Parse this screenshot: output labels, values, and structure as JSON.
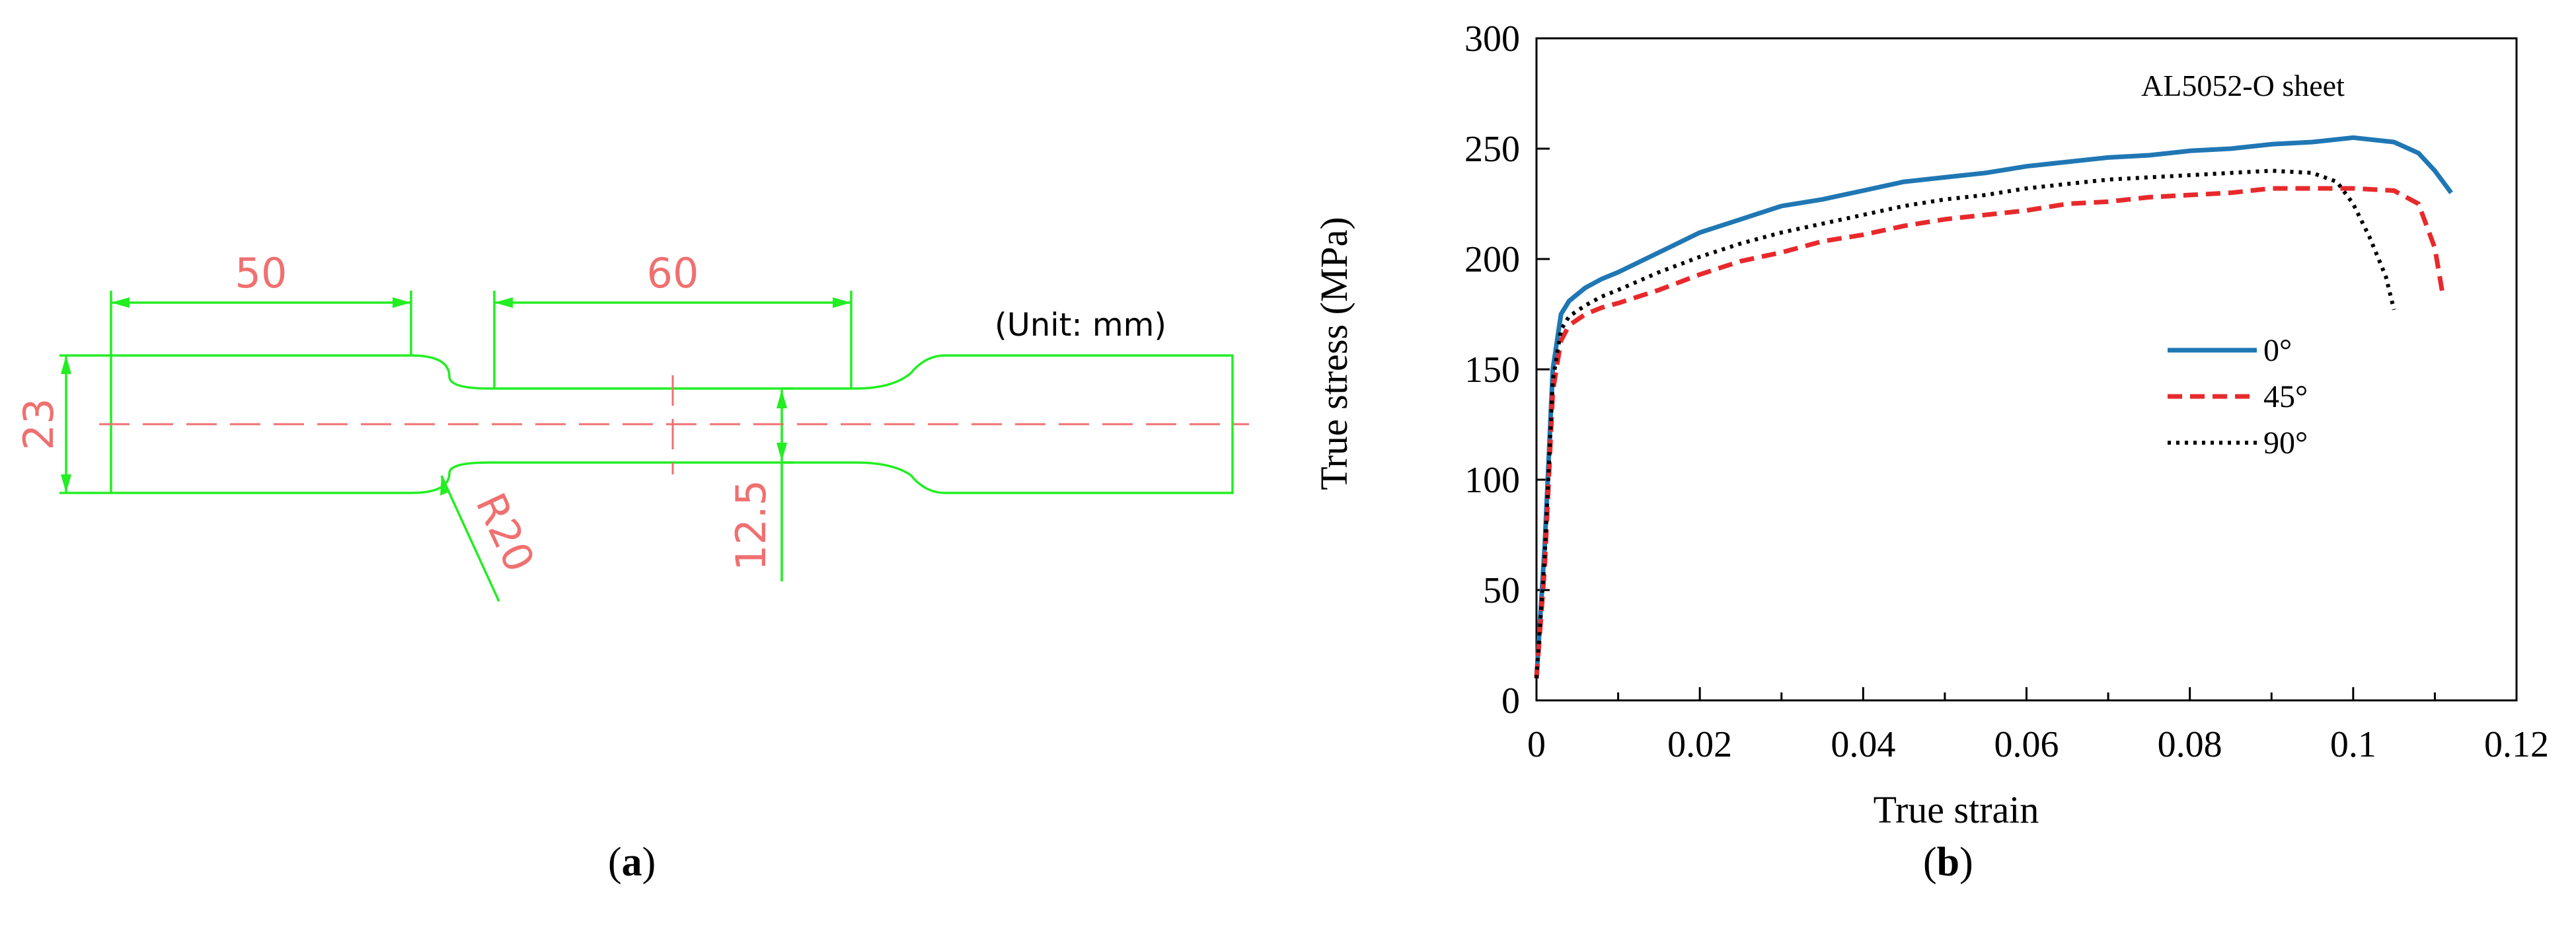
{
  "panel_a": {
    "label": "a",
    "unit_note": "(Unit: mm)",
    "dimensions": {
      "grip_length": "50",
      "gauge_length": "60",
      "width": "23",
      "gauge_width": "12.5",
      "radius": "R20"
    },
    "colors": {
      "outline": "#22ee22",
      "dimension_text": "#f07070",
      "centerline": "#f07070"
    }
  },
  "panel_b": {
    "label": "b"
  },
  "chart_data": {
    "type": "line",
    "title": "",
    "annotation": "AL5052-O sheet",
    "xlabel": "True strain",
    "ylabel": "True stress (MPa)",
    "xlim": [
      0,
      0.12
    ],
    "ylim": [
      0,
      300
    ],
    "xticks": [
      "0",
      "0.02",
      "0.04",
      "0.06",
      "0.08",
      "0.1",
      "0.12"
    ],
    "yticks": [
      "0",
      "50",
      "100",
      "150",
      "200",
      "250",
      "300"
    ],
    "grid": false,
    "legend_position": "center-right",
    "series": [
      {
        "name": "0°",
        "color": "#1f77b4",
        "dash": "solid",
        "x": [
          0,
          0.001,
          0.002,
          0.003,
          0.004,
          0.006,
          0.008,
          0.01,
          0.015,
          0.02,
          0.025,
          0.03,
          0.035,
          0.04,
          0.045,
          0.05,
          0.055,
          0.06,
          0.065,
          0.07,
          0.075,
          0.08,
          0.085,
          0.09,
          0.095,
          0.1,
          0.105,
          0.108,
          0.11,
          0.112
        ],
        "y": [
          10,
          70,
          150,
          175,
          181,
          187,
          191,
          194,
          203,
          212,
          218,
          224,
          227,
          231,
          235,
          237,
          239,
          242,
          244,
          246,
          247,
          249,
          250,
          252,
          253,
          255,
          253,
          248,
          240,
          230
        ]
      },
      {
        "name": "45°",
        "color": "#e8292b",
        "dash": "dashed",
        "x": [
          0,
          0.001,
          0.002,
          0.003,
          0.004,
          0.006,
          0.008,
          0.01,
          0.015,
          0.02,
          0.025,
          0.03,
          0.035,
          0.04,
          0.045,
          0.05,
          0.055,
          0.06,
          0.065,
          0.07,
          0.075,
          0.08,
          0.085,
          0.09,
          0.095,
          0.1,
          0.105,
          0.108,
          0.11,
          0.111
        ],
        "y": [
          10,
          60,
          140,
          163,
          170,
          175,
          178,
          180,
          186,
          193,
          199,
          203,
          208,
          211,
          215,
          218,
          220,
          222,
          225,
          226,
          228,
          229,
          230,
          232,
          232,
          232,
          231,
          225,
          205,
          183
        ]
      },
      {
        "name": "90°",
        "color": "#000000",
        "dash": "dotted",
        "x": [
          0,
          0.001,
          0.002,
          0.003,
          0.004,
          0.006,
          0.008,
          0.01,
          0.015,
          0.02,
          0.025,
          0.03,
          0.035,
          0.04,
          0.045,
          0.05,
          0.055,
          0.06,
          0.065,
          0.07,
          0.075,
          0.08,
          0.085,
          0.09,
          0.095,
          0.098,
          0.1,
          0.102,
          0.104,
          0.105
        ],
        "y": [
          10,
          65,
          145,
          168,
          174,
          179,
          183,
          186,
          194,
          201,
          207,
          212,
          216,
          220,
          224,
          227,
          229,
          232,
          234,
          236,
          237,
          238,
          239,
          240,
          239,
          235,
          225,
          210,
          192,
          177
        ]
      }
    ]
  }
}
